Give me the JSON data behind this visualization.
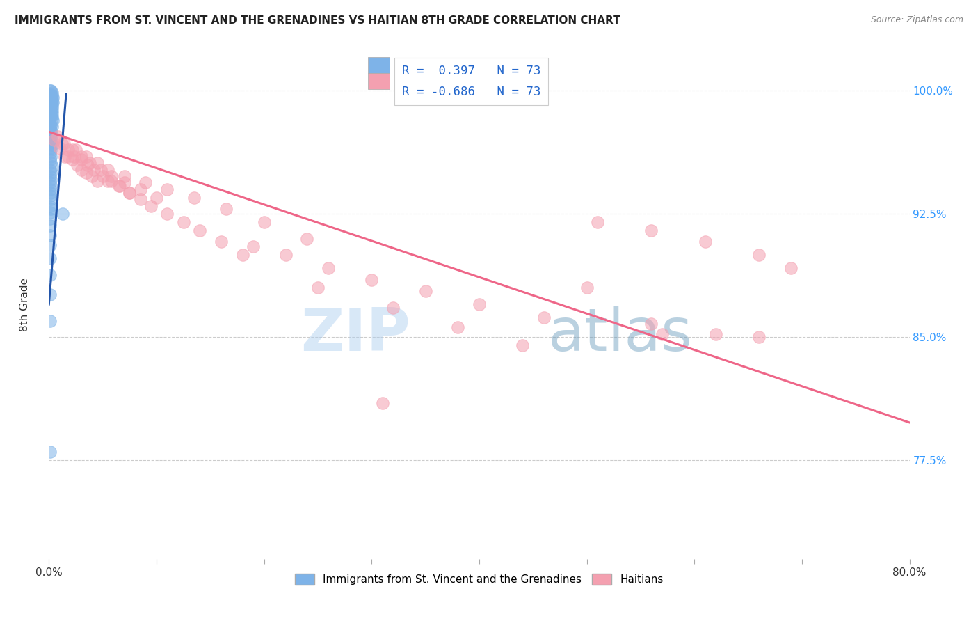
{
  "title": "IMMIGRANTS FROM ST. VINCENT AND THE GRENADINES VS HAITIAN 8TH GRADE CORRELATION CHART",
  "source": "Source: ZipAtlas.com",
  "ylabel": "8th Grade",
  "x_min": 0.0,
  "x_max": 0.8,
  "y_min": 0.715,
  "y_max": 1.025,
  "blue_color": "#7EB3E8",
  "pink_color": "#F4A0B0",
  "blue_line_color": "#2255AA",
  "pink_line_color": "#EE6688",
  "watermark_zip": "ZIP",
  "watermark_atlas": "atlas",
  "blue_dots_x": [
    0.001,
    0.002,
    0.003,
    0.001,
    0.002,
    0.003,
    0.004,
    0.001,
    0.002,
    0.003,
    0.001,
    0.002,
    0.003,
    0.004,
    0.001,
    0.002,
    0.003,
    0.001,
    0.002,
    0.003,
    0.001,
    0.002,
    0.003,
    0.001,
    0.002,
    0.003,
    0.001,
    0.002,
    0.003,
    0.004,
    0.001,
    0.002,
    0.003,
    0.001,
    0.002,
    0.001,
    0.002,
    0.003,
    0.001,
    0.002,
    0.001,
    0.002,
    0.003,
    0.001,
    0.002,
    0.001,
    0.002,
    0.001,
    0.002,
    0.003,
    0.001,
    0.002,
    0.001,
    0.002,
    0.001,
    0.002,
    0.001,
    0.002,
    0.001,
    0.002,
    0.001,
    0.002,
    0.001,
    0.001,
    0.001,
    0.001,
    0.001,
    0.001,
    0.001,
    0.001,
    0.013,
    0.001,
    0.001
  ],
  "blue_dots_y": [
    1.0,
    1.0,
    0.999,
    0.998,
    0.997,
    0.997,
    0.996,
    0.996,
    0.995,
    0.995,
    0.994,
    0.994,
    0.993,
    0.993,
    0.992,
    0.992,
    0.991,
    0.99,
    0.99,
    0.989,
    0.988,
    0.988,
    0.987,
    0.986,
    0.986,
    0.985,
    0.984,
    0.984,
    0.983,
    0.982,
    0.98,
    0.979,
    0.978,
    0.977,
    0.976,
    0.975,
    0.974,
    0.973,
    0.972,
    0.971,
    0.969,
    0.968,
    0.967,
    0.965,
    0.964,
    0.962,
    0.96,
    0.958,
    0.956,
    0.954,
    0.952,
    0.95,
    0.948,
    0.946,
    0.944,
    0.942,
    0.94,
    0.938,
    0.936,
    0.934,
    0.93,
    0.928,
    0.926,
    0.922,
    0.918,
    0.912,
    0.906,
    0.898,
    0.888,
    0.876,
    0.925,
    0.86,
    0.78
  ],
  "pink_dots_x": [
    0.005,
    0.01,
    0.015,
    0.018,
    0.022,
    0.026,
    0.03,
    0.035,
    0.04,
    0.045,
    0.012,
    0.018,
    0.024,
    0.03,
    0.036,
    0.042,
    0.05,
    0.058,
    0.066,
    0.075,
    0.008,
    0.014,
    0.022,
    0.03,
    0.038,
    0.048,
    0.058,
    0.07,
    0.085,
    0.1,
    0.055,
    0.065,
    0.075,
    0.085,
    0.095,
    0.11,
    0.125,
    0.14,
    0.16,
    0.18,
    0.025,
    0.035,
    0.045,
    0.055,
    0.07,
    0.09,
    0.11,
    0.135,
    0.165,
    0.2,
    0.24,
    0.19,
    0.22,
    0.26,
    0.3,
    0.35,
    0.4,
    0.46,
    0.51,
    0.56,
    0.61,
    0.66,
    0.69,
    0.25,
    0.32,
    0.38,
    0.44,
    0.5,
    0.56,
    0.62,
    0.57,
    0.66,
    0.31
  ],
  "pink_dots_y": [
    0.97,
    0.965,
    0.96,
    0.96,
    0.958,
    0.955,
    0.952,
    0.95,
    0.948,
    0.945,
    0.968,
    0.964,
    0.96,
    0.958,
    0.955,
    0.952,
    0.948,
    0.945,
    0.942,
    0.938,
    0.972,
    0.968,
    0.964,
    0.96,
    0.956,
    0.952,
    0.948,
    0.944,
    0.94,
    0.935,
    0.945,
    0.942,
    0.938,
    0.934,
    0.93,
    0.925,
    0.92,
    0.915,
    0.908,
    0.9,
    0.964,
    0.96,
    0.956,
    0.952,
    0.948,
    0.944,
    0.94,
    0.935,
    0.928,
    0.92,
    0.91,
    0.905,
    0.9,
    0.892,
    0.885,
    0.878,
    0.87,
    0.862,
    0.92,
    0.915,
    0.908,
    0.9,
    0.892,
    0.88,
    0.868,
    0.856,
    0.845,
    0.88,
    0.858,
    0.852,
    0.852,
    0.85,
    0.81
  ],
  "blue_trend_x0": 0.0,
  "blue_trend_x1": 0.016,
  "blue_trend_y0": 0.87,
  "blue_trend_y1": 0.998,
  "pink_trend_x0": 0.0,
  "pink_trend_x1": 0.8,
  "pink_trend_y0": 0.975,
  "pink_trend_y1": 0.798,
  "legend_r1_val": "0.397",
  "legend_r2_val": "-0.686",
  "legend_n": "73",
  "yticks": [
    0.775,
    0.85,
    0.925,
    1.0
  ],
  "ytick_labels": [
    "77.5%",
    "85.0%",
    "92.5%",
    "100.0%"
  ]
}
